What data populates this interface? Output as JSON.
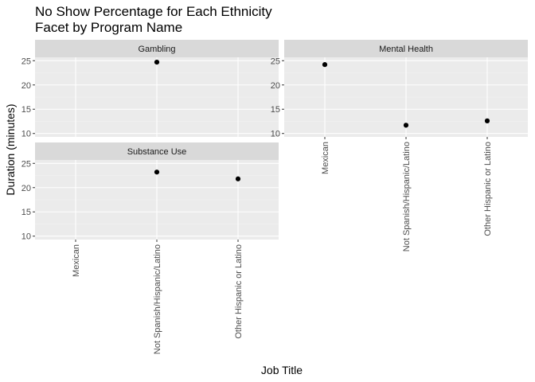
{
  "chart_data": {
    "type": "scatter",
    "title": "No Show Percentage for Each Ethnicity\nFacet by Program Name",
    "xlabel": "Job Title",
    "ylabel": "Duration (minutes)",
    "categories": [
      "Mexican",
      "Not Spanish/Hispanic/Latino",
      "Other Hispanic or Latino"
    ],
    "yticks": [
      10,
      15,
      20,
      25
    ],
    "ylim": [
      9.3,
      25.7
    ],
    "grid": true,
    "facets": [
      {
        "name": "Gambling",
        "points": [
          {
            "x": "Not Spanish/Hispanic/Latino",
            "y": 24.7
          }
        ]
      },
      {
        "name": "Mental Health",
        "points": [
          {
            "x": "Mexican",
            "y": 24.2
          },
          {
            "x": "Not Spanish/Hispanic/Latino",
            "y": 11.7
          },
          {
            "x": "Other Hispanic or Latino",
            "y": 12.6
          }
        ]
      },
      {
        "name": "Substance Use",
        "points": [
          {
            "x": "Not Spanish/Hispanic/Latino",
            "y": 23.2
          },
          {
            "x": "Other Hispanic or Latino",
            "y": 21.8
          }
        ]
      }
    ]
  }
}
